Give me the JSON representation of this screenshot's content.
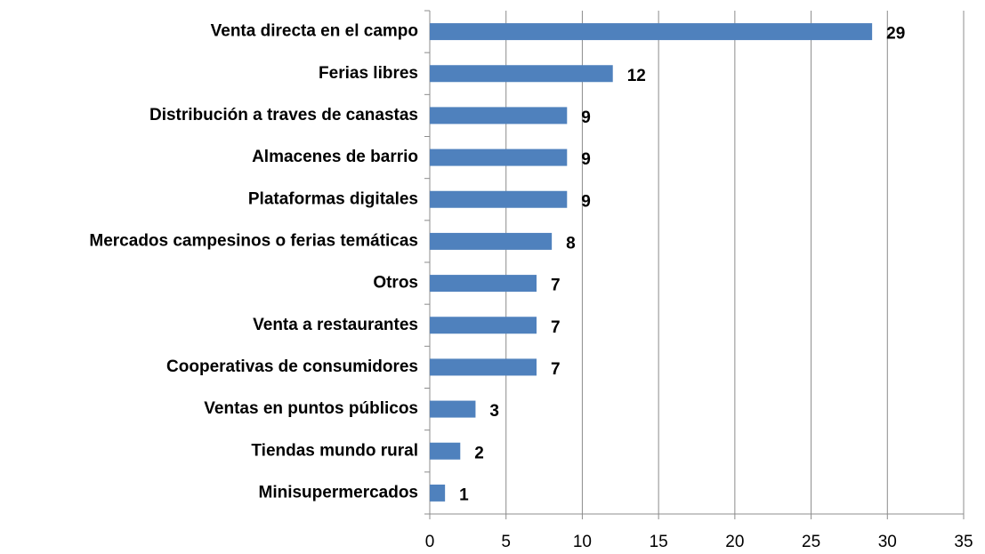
{
  "chart_data": {
    "type": "barh",
    "categories": [
      "Venta directa en el campo",
      "Ferias libres",
      "Distribución a traves de canastas",
      "Almacenes de barrio",
      "Plataformas digitales",
      "Mercados campesinos o ferias temáticas",
      "Otros",
      "Venta a restaurantes",
      "Cooperativas de consumidores",
      "Ventas en puntos públicos",
      "Tiendas mundo rural",
      "Minisupermercados"
    ],
    "values": [
      29,
      12,
      9,
      9,
      9,
      8,
      7,
      7,
      7,
      3,
      2,
      1
    ],
    "color": "#4f81bd",
    "xlim": [
      0,
      35
    ],
    "xticks": [
      0,
      5,
      10,
      15,
      20,
      25,
      30,
      35
    ],
    "grid": true
  }
}
